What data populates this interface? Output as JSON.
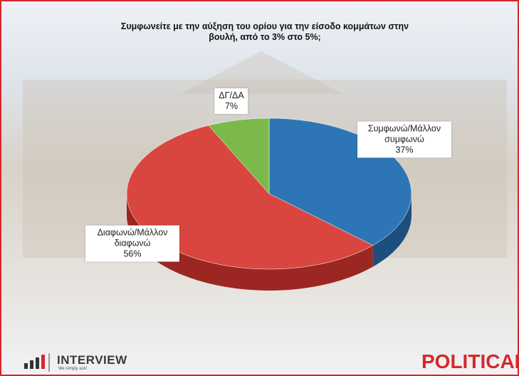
{
  "chart_data": {
    "type": "pie",
    "title": "Συμφωνείτε με την αύξηση του ορίου για την είσοδο κομμάτων στην βουλή, από το 3% στο 5%;",
    "categories": [
      "Συμφωνώ/Μάλλον συμφωνώ",
      "Διαφωνώ/Μάλλον διαφωνώ",
      "ΔΓ/ΔΑ"
    ],
    "values": [
      37,
      56,
      7
    ],
    "value_labels": [
      "37%",
      "56%",
      "7%"
    ],
    "colors": [
      "#2e75b6",
      "#d9463f",
      "#7cb94a"
    ],
    "side_colors": [
      "#1d4f7e",
      "#9b2622",
      "#4f7f2c"
    ]
  },
  "footer": {
    "left_logo": "INTERVIEW",
    "left_tagline": "We simply ask!",
    "right_logo": "POLITICAL"
  }
}
